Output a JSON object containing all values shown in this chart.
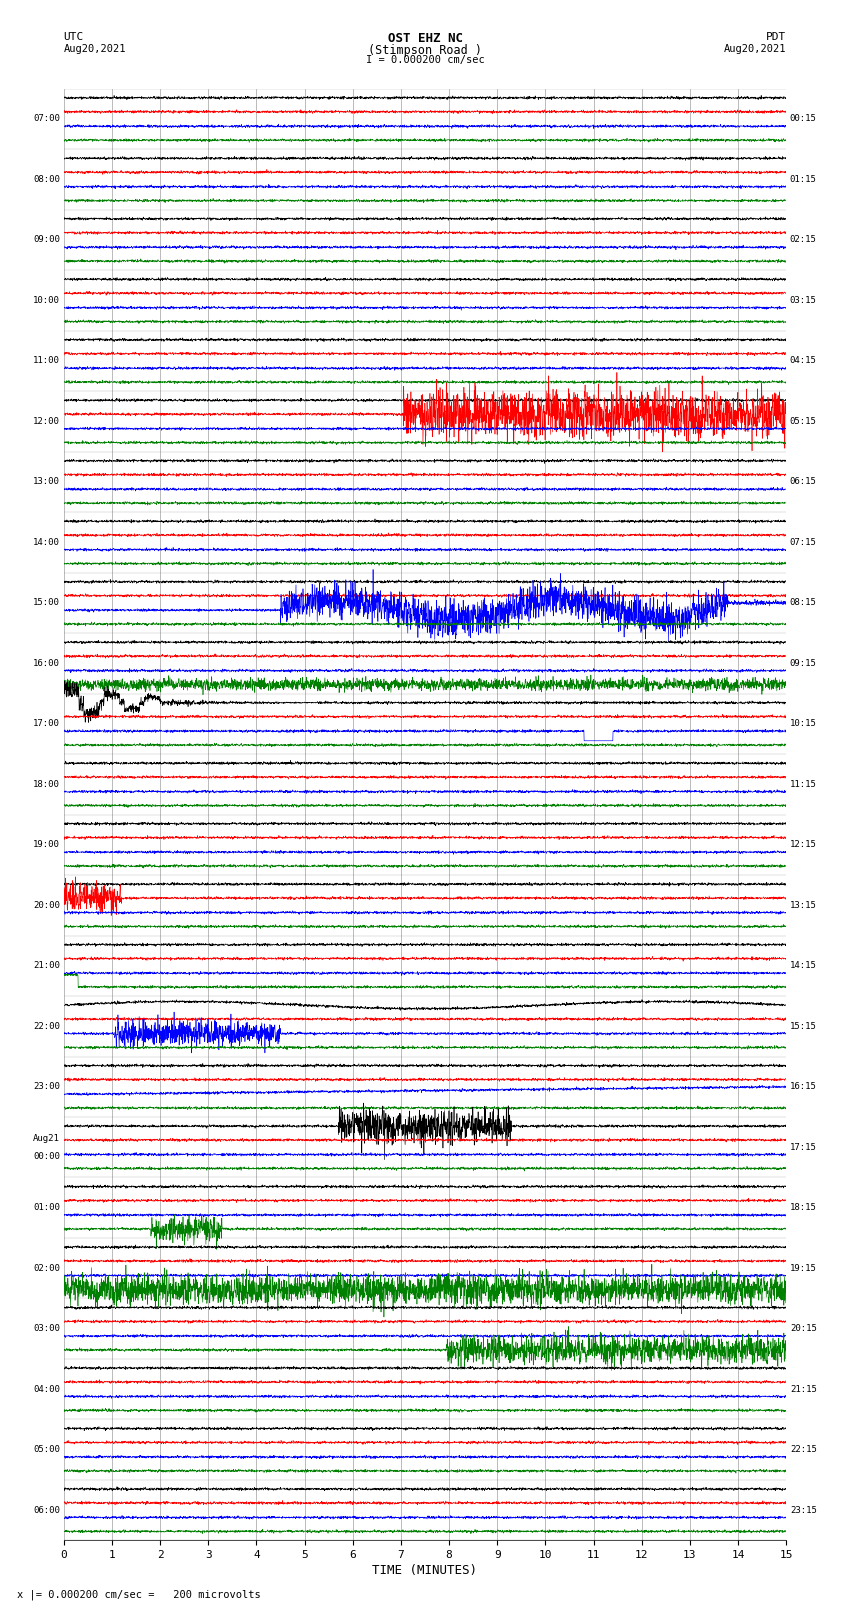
{
  "title_line1": "OST EHZ NC",
  "title_line2": "(Stimpson Road )",
  "title_line3": "I = 0.000200 cm/sec",
  "label_utc": "UTC",
  "label_utc_date": "Aug20,2021",
  "label_pdt": "PDT",
  "label_pdt_date": "Aug20,2021",
  "xlabel": "TIME (MINUTES)",
  "footer": "x |= 0.000200 cm/sec =   200 microvolts",
  "left_labels": [
    "07:00",
    "08:00",
    "09:00",
    "10:00",
    "11:00",
    "12:00",
    "13:00",
    "14:00",
    "15:00",
    "16:00",
    "17:00",
    "18:00",
    "19:00",
    "20:00",
    "21:00",
    "22:00",
    "23:00",
    "Aug21\n00:00",
    "01:00",
    "02:00",
    "03:00",
    "04:00",
    "05:00",
    "06:00"
  ],
  "right_labels": [
    "00:15",
    "01:15",
    "02:15",
    "03:15",
    "04:15",
    "05:15",
    "06:15",
    "07:15",
    "08:15",
    "09:15",
    "10:15",
    "11:15",
    "12:15",
    "13:15",
    "14:15",
    "15:15",
    "16:15",
    "17:15",
    "18:15",
    "19:15",
    "20:15",
    "21:15",
    "22:15",
    "23:15"
  ],
  "num_rows": 24,
  "traces_per_row": 4,
  "trace_colors": [
    "black",
    "red",
    "blue",
    "green"
  ],
  "time_minutes": 15,
  "bg_color": "white",
  "grid_color": "#777777",
  "font_family": "monospace"
}
